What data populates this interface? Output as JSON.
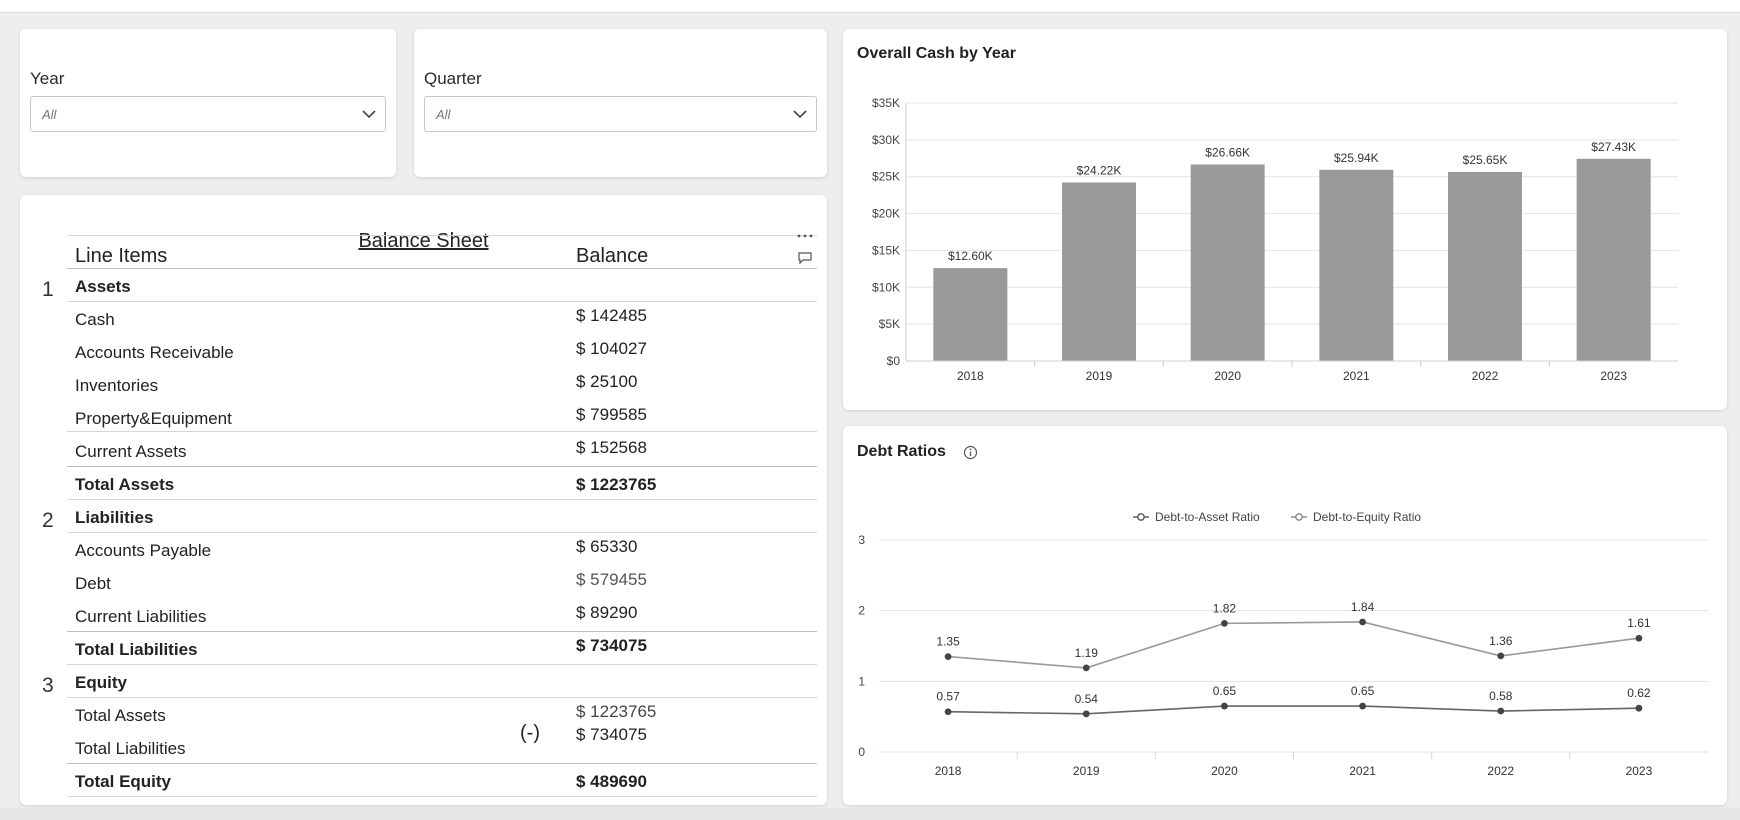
{
  "filters": {
    "year": {
      "label": "Year",
      "value": "All"
    },
    "quarter": {
      "label": "Quarter",
      "value": "All"
    }
  },
  "balance_sheet": {
    "title": "Balance Sheet",
    "columns": [
      "Line Items",
      "Balance"
    ],
    "more_icon": "ellipsis-icon",
    "comment_icon": "comment-icon",
    "sections": [
      {
        "number": "1",
        "name": "Assets",
        "items": [
          {
            "label": "Cash",
            "value": "$ 142485"
          },
          {
            "label": "Accounts Receivable",
            "value": "$ 104027"
          },
          {
            "label": "Inventories",
            "value": "$ 25100"
          },
          {
            "label": "Property&Equipment",
            "value": "$ 799585"
          },
          {
            "label": "Current Assets",
            "value": "$ 152568"
          }
        ],
        "total": {
          "label": "Total Assets",
          "value": "$ 1223765"
        }
      },
      {
        "number": "2",
        "name": "Liabilities",
        "items": [
          {
            "label": "Accounts Payable",
            "value": "$ 65330"
          },
          {
            "label": "Debt",
            "value": "$ 579455"
          },
          {
            "label": "Current Liabilities",
            "value": "$ 89290"
          }
        ],
        "total": {
          "label": "Total Liabilities",
          "value": "$ 734075"
        }
      },
      {
        "number": "3",
        "name": "Equity",
        "items": [
          {
            "label": "Total Assets",
            "value": "$ 1223765"
          },
          {
            "label": "Total Liabilities",
            "value": "$ 734075"
          }
        ],
        "operator": "(-)",
        "total": {
          "label": "Total Equity",
          "value": "$ 489690"
        }
      }
    ]
  },
  "chart_data": [
    {
      "type": "bar",
      "title": "Overall Cash by Year",
      "categories": [
        "2018",
        "2019",
        "2020",
        "2021",
        "2022",
        "2023"
      ],
      "values": [
        12.6,
        24.22,
        26.66,
        25.94,
        25.65,
        27.43
      ],
      "data_labels": [
        "$12.60K",
        "$24.22K",
        "$26.66K",
        "$25.94K",
        "$25.65K",
        "$27.43K"
      ],
      "yticks": [
        "$0",
        "$5K",
        "$10K",
        "$15K",
        "$20K",
        "$25K",
        "$30K",
        "$35K"
      ],
      "ylim": [
        0,
        35
      ],
      "bar_color": "#999999",
      "grid": true
    },
    {
      "type": "line",
      "title": "Debt Ratios",
      "info_icon": "info-icon",
      "categories": [
        "2018",
        "2019",
        "2020",
        "2021",
        "2022",
        "2023"
      ],
      "series": [
        {
          "name": "Debt-to-Asset Ratio",
          "values": [
            0.57,
            0.54,
            0.65,
            0.65,
            0.58,
            0.62
          ],
          "labels": [
            "0.57",
            "0.54",
            "0.65",
            "0.65",
            "0.58",
            "0.62"
          ]
        },
        {
          "name": "Debt-to-Equity Ratio",
          "values": [
            1.35,
            1.19,
            1.82,
            1.84,
            1.36,
            1.61
          ],
          "labels": [
            "1.35",
            "1.19",
            "1.82",
            "1.84",
            "1.36",
            "1.61"
          ]
        }
      ],
      "yticks": [
        "0",
        "1",
        "2",
        "3"
      ],
      "ylim": [
        0,
        3
      ],
      "legend": "top-center",
      "line_color": "#555555",
      "grid": true
    }
  ]
}
